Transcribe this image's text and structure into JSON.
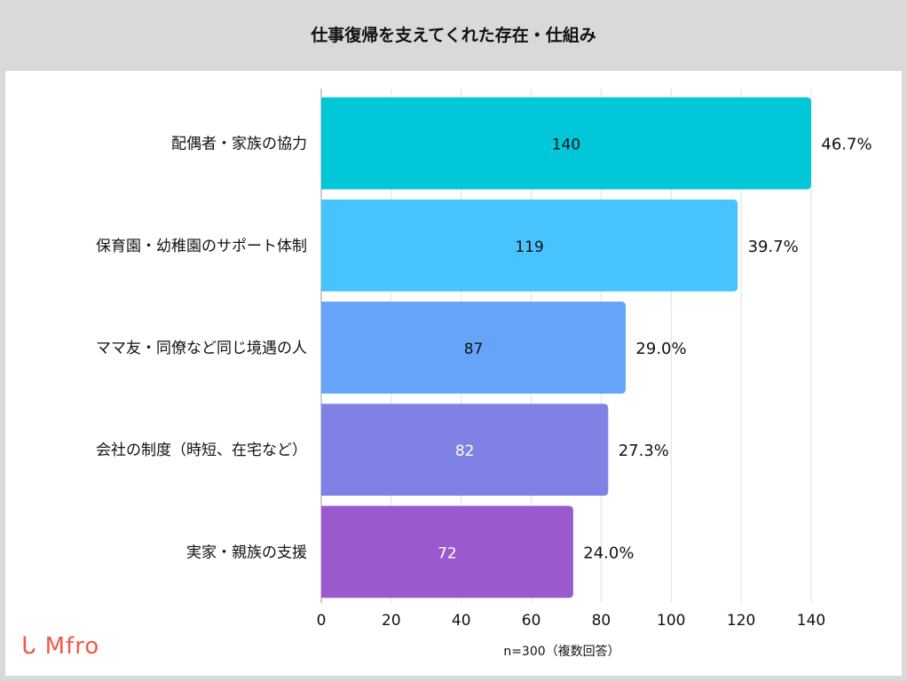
{
  "chart_data": {
    "type": "bar",
    "orientation": "horizontal",
    "title": "仕事復帰を支えてくれた存在・仕組み",
    "categories": [
      "配偶者・家族の協力",
      "保育園・幼稚園のサポート体制",
      "ママ友・同僚など同じ境遇の人",
      "会社の制度（時短、在宅など）",
      "実家・親族の支援"
    ],
    "values": [
      140,
      119,
      87,
      82,
      72
    ],
    "percent_labels": [
      "46.7%",
      "39.7%",
      "29.0%",
      "27.3%",
      "24.0%"
    ],
    "colors": [
      "#00c8d8",
      "#47c3fe",
      "#66a4f9",
      "#7f81e5",
      "#9b59cd"
    ],
    "value_label_colors": [
      "#111111",
      "#111111",
      "#111111",
      "#ffffff",
      "#ffffff"
    ],
    "xlim": [
      0,
      140
    ],
    "xticks": [
      0,
      20,
      40,
      60,
      80,
      100,
      120,
      140
    ],
    "xlabel": "n=300（複数回答）",
    "grid": true
  },
  "logo": "Mfro"
}
